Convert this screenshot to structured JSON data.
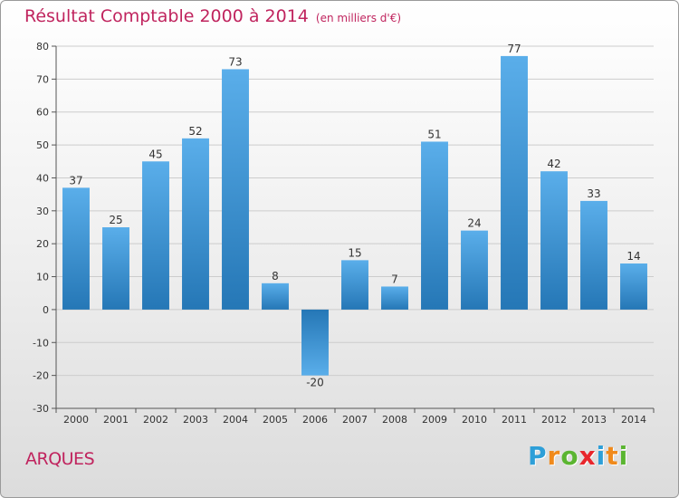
{
  "title": "Résultat Comptable 2000 à 2014",
  "subtitle": "(en milliers d'€)",
  "town": "ARQUES",
  "logo": {
    "text": "Proxiti",
    "letters": [
      "P",
      "r",
      "o",
      "x",
      "i",
      "t",
      "i"
    ],
    "colors": [
      "#2e9fd8",
      "#f08a1c",
      "#5bb531",
      "#e8262c",
      "#2e9fd8",
      "#f08a1c",
      "#5bb531"
    ]
  },
  "colors": {
    "title": "#c0245e",
    "bar_light": "#5aaeea",
    "bar_dark": "#2577b6",
    "grid": "#cccccc"
  },
  "chart_data": {
    "type": "bar",
    "title": "Résultat Comptable 2000 à 2014",
    "xlabel": "",
    "ylabel": "",
    "categories": [
      "2000",
      "2001",
      "2002",
      "2003",
      "2004",
      "2005",
      "2006",
      "2007",
      "2008",
      "2009",
      "2010",
      "2011",
      "2012",
      "2013",
      "2014"
    ],
    "values": [
      37,
      25,
      45,
      52,
      73,
      8,
      -20,
      15,
      7,
      51,
      24,
      77,
      42,
      33,
      14
    ],
    "ylim": [
      -30,
      80
    ],
    "yticks": [
      -30,
      -20,
      -10,
      0,
      10,
      20,
      30,
      40,
      50,
      60,
      70,
      80
    ],
    "grid": true
  }
}
